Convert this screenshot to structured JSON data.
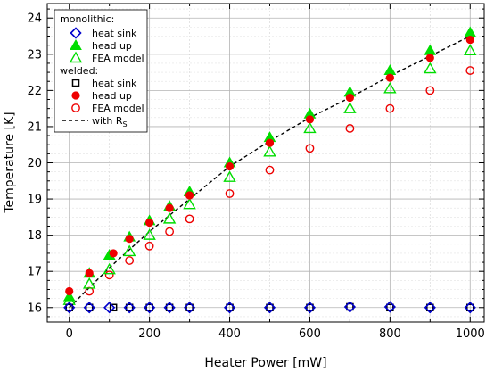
{
  "chart_data": {
    "type": "scatter",
    "xlabel": "Heater Power [mW]",
    "ylabel": "Temperature [K]",
    "xlim": [
      -55,
      1035
    ],
    "ylim": [
      15.6,
      24.4
    ],
    "xticks": [
      0,
      200,
      400,
      600,
      800,
      1000
    ],
    "yticks": [
      16,
      17,
      18,
      19,
      20,
      21,
      22,
      23,
      24
    ],
    "grid": true,
    "legend_position": "top-left",
    "legend": {
      "group_monolithic": "monolithic:",
      "group_welded": "welded:",
      "fit_label": "with R",
      "fit_label_sub": "S"
    },
    "colors": {
      "blue": "#0000cc",
      "green": "#00dd00",
      "red": "#ee0000",
      "black": "#000000"
    },
    "series": [
      {
        "name": "heat sink",
        "group": "monolithic",
        "marker": "open-diamond",
        "color": "#0000cc",
        "x": [
          0,
          50,
          100,
          150,
          200,
          250,
          300,
          400,
          500,
          600,
          700,
          800,
          900,
          1000
        ],
        "y": [
          16.0,
          16.0,
          16.0,
          16.0,
          16.0,
          16.0,
          16.0,
          16.0,
          16.0,
          16.0,
          16.02,
          16.02,
          16.0,
          16.0
        ]
      },
      {
        "name": "head up",
        "group": "monolithic",
        "marker": "filled-triangle",
        "color": "#00dd00",
        "x": [
          0,
          50,
          100,
          150,
          200,
          250,
          300,
          400,
          500,
          600,
          700,
          800,
          900,
          1000
        ],
        "y": [
          16.3,
          16.95,
          17.45,
          17.95,
          18.4,
          18.8,
          19.2,
          20.0,
          20.7,
          21.35,
          21.95,
          22.55,
          23.1,
          23.6
        ]
      },
      {
        "name": "FEA model",
        "group": "monolithic",
        "marker": "open-triangle",
        "color": "#00dd00",
        "x": [
          0,
          50,
          100,
          150,
          200,
          250,
          300,
          400,
          500,
          600,
          700,
          800,
          900,
          1000
        ],
        "y": [
          16.2,
          16.65,
          17.05,
          17.55,
          18.0,
          18.45,
          18.85,
          19.6,
          20.3,
          20.95,
          21.5,
          22.05,
          22.6,
          23.1
        ]
      },
      {
        "name": "heat sink",
        "group": "welded",
        "marker": "open-square",
        "color": "#000000",
        "x": [
          0,
          50,
          110,
          150,
          200,
          250,
          300,
          400,
          500,
          600,
          700,
          800,
          900,
          1000
        ],
        "y": [
          16.0,
          16.0,
          16.0,
          16.0,
          16.0,
          16.0,
          16.0,
          16.0,
          16.0,
          16.0,
          16.02,
          16.0,
          16.0,
          16.0
        ]
      },
      {
        "name": "head up",
        "group": "welded",
        "marker": "filled-circle",
        "color": "#ee0000",
        "x": [
          0,
          50,
          110,
          150,
          200,
          250,
          300,
          400,
          500,
          600,
          700,
          800,
          900,
          1000
        ],
        "y": [
          16.45,
          16.95,
          17.5,
          17.9,
          18.35,
          18.75,
          19.1,
          19.9,
          20.55,
          21.2,
          21.8,
          22.35,
          22.9,
          23.4
        ]
      },
      {
        "name": "FEA model",
        "group": "welded",
        "marker": "open-circle",
        "color": "#ee0000",
        "x": [
          0,
          50,
          100,
          150,
          200,
          250,
          300,
          400,
          500,
          600,
          700,
          800,
          900,
          1000
        ],
        "y": [
          16.0,
          16.45,
          16.9,
          17.3,
          17.7,
          18.1,
          18.45,
          19.15,
          19.8,
          20.4,
          20.95,
          21.5,
          22.0,
          22.55
        ]
      },
      {
        "name": "with R_S",
        "marker": "dashed-line",
        "color": "#000000",
        "x": [
          0,
          100,
          200,
          300,
          400,
          500,
          600,
          700,
          800,
          900,
          1000
        ],
        "y": [
          16.0,
          17.1,
          18.1,
          19.0,
          19.9,
          20.6,
          21.25,
          21.8,
          22.4,
          22.95,
          23.5
        ]
      }
    ]
  }
}
